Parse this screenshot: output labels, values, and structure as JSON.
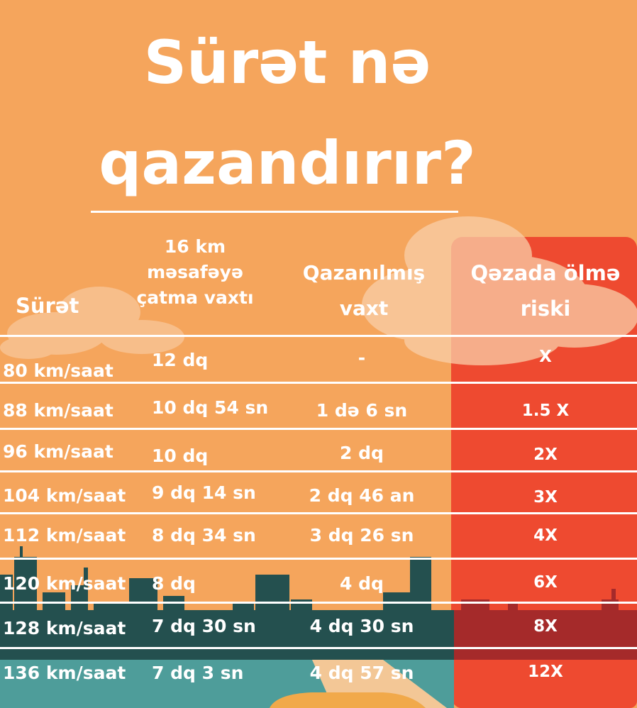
{
  "title": {
    "line1": "Sürət nə",
    "line2": "qazandırır?"
  },
  "table": {
    "headers": {
      "speed": "Sürət",
      "time_line1": "16 km",
      "time_line2": "məsafəyə",
      "time_line3": "çatma vaxtı",
      "gain_line1": "Qazanılmış",
      "gain_line2": "vaxt",
      "risk_line1": "Qəzada ölmə",
      "risk_line2": "riski"
    },
    "rows": [
      {
        "speed": "80 km/saat",
        "time": "12 dq",
        "gain": "-",
        "risk": "X"
      },
      {
        "speed": "88 km/saat",
        "time": "10 dq 54 sn",
        "gain": "1 də 6 sn",
        "risk": "1.5 X"
      },
      {
        "speed": "96 km/saat",
        "time": "10 dq",
        "gain": "2 dq",
        "risk": "2X"
      },
      {
        "speed": "104 km/saat",
        "time": "9 dq 14 sn",
        "gain": "2 dq 46 an",
        "risk": "3X"
      },
      {
        "speed": "112 km/saat",
        "time": "8 dq 34 sn",
        "gain": "3 dq 26 sn",
        "risk": "4X"
      },
      {
        "speed": "120 km/saat",
        "time": "8 dq",
        "gain": "4 dq",
        "risk": "6X"
      },
      {
        "speed": "128 km/saat",
        "time": "7 dq 30 sn",
        "gain": "4 dq 30 sn",
        "risk": "8X"
      },
      {
        "speed": "136 km/saat",
        "time": "7 dq 3 sn",
        "gain": "4 dq 57 sn",
        "risk": "12X"
      }
    ]
  },
  "colors": {
    "background": "#f5a55c",
    "risk_column": "#ee4a30",
    "skyline": "#24504f",
    "skyline_red": "#a52a2a",
    "road": "#4e9d9a",
    "text": "#ffffff"
  }
}
